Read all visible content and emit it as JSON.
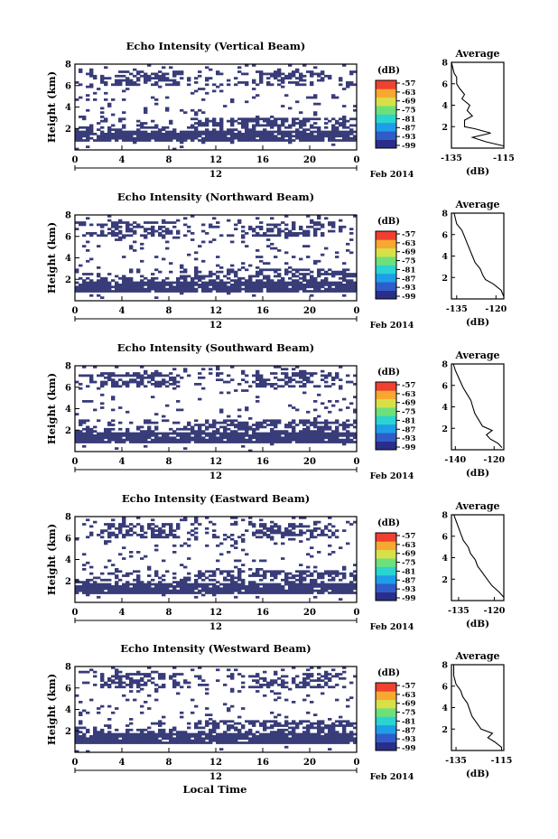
{
  "figure": {
    "xlabel": "Local Time",
    "date_label": "Feb 2014",
    "cbar_unit": "(dB)",
    "cbar_ticks": [
      "-57",
      "-63",
      "-69",
      "-75",
      "-81",
      "-87",
      "-93",
      "-99"
    ],
    "cbar_colors": [
      "#2a2e8a",
      "#2f5cc8",
      "#1e9ee8",
      "#2ad4d0",
      "#6ee07a",
      "#d8e048",
      "#f8a830",
      "#f04030"
    ],
    "echo_color": "#383c78"
  },
  "chart_data": [
    {
      "type": "heatmap",
      "title": "Echo Intensity (Vertical Beam)",
      "ylabel": "Height (km)",
      "x_ticks": [
        "0",
        "4",
        "8",
        "12",
        "16",
        "20",
        "0"
      ],
      "x_center_label": "12",
      "xlim": [
        0,
        24
      ],
      "y_ticks": [
        "2",
        "4",
        "6",
        "8"
      ],
      "ylim": [
        0,
        8
      ],
      "avg": {
        "title": "Average",
        "xlabel": "(dB)",
        "x_ticks": [
          "-135",
          "-115"
        ],
        "xlim": [
          -135,
          -115
        ],
        "y_ticks": [
          "2",
          "4",
          "6",
          "8"
        ],
        "ylim": [
          0,
          8
        ],
        "profile": [
          [
            -115,
            0.2
          ],
          [
            -122,
            0.6
          ],
          [
            -127,
            1.0
          ],
          [
            -120,
            1.4
          ],
          [
            -126,
            1.8
          ],
          [
            -130,
            2.0
          ],
          [
            -130,
            2.6
          ],
          [
            -127,
            3.0
          ],
          [
            -129,
            3.5
          ],
          [
            -128,
            4.0
          ],
          [
            -131,
            4.6
          ],
          [
            -130,
            5.0
          ],
          [
            -132,
            5.6
          ],
          [
            -133,
            6.0
          ],
          [
            -133,
            6.6
          ],
          [
            -134,
            7.0
          ],
          [
            -135,
            8.0
          ]
        ]
      }
    },
    {
      "type": "heatmap",
      "title": "Echo Intensity (Northward Beam)",
      "ylabel": "Height (km)",
      "x_ticks": [
        "0",
        "4",
        "8",
        "12",
        "16",
        "20",
        "0"
      ],
      "x_center_label": "12",
      "xlim": [
        0,
        24
      ],
      "y_ticks": [
        "2",
        "4",
        "6",
        "8"
      ],
      "ylim": [
        0,
        8
      ],
      "avg": {
        "title": "Average",
        "xlabel": "(dB)",
        "x_ticks": [
          "-135",
          "-120"
        ],
        "xlim": [
          -137,
          -117
        ],
        "y_ticks": [
          "2",
          "4",
          "6",
          "8"
        ],
        "ylim": [
          0,
          8
        ],
        "profile": [
          [
            -117,
            0.2
          ],
          [
            -118,
            0.8
          ],
          [
            -121,
            1.4
          ],
          [
            -124,
            1.8
          ],
          [
            -125,
            2.2
          ],
          [
            -126,
            2.8
          ],
          [
            -128,
            3.4
          ],
          [
            -129,
            4.0
          ],
          [
            -130,
            4.6
          ],
          [
            -131,
            5.2
          ],
          [
            -132,
            5.8
          ],
          [
            -133,
            6.4
          ],
          [
            -135,
            7.0
          ],
          [
            -136,
            8.0
          ]
        ]
      }
    },
    {
      "type": "heatmap",
      "title": "Echo Intensity (Southward Beam)",
      "ylabel": "Height (km)",
      "x_ticks": [
        "0",
        "4",
        "8",
        "12",
        "16",
        "20",
        "0"
      ],
      "x_center_label": "12",
      "xlim": [
        0,
        24
      ],
      "y_ticks": [
        "2",
        "4",
        "6",
        "8"
      ],
      "ylim": [
        0,
        8
      ],
      "avg": {
        "title": "Average",
        "xlabel": "(dB)",
        "x_ticks": [
          "-140",
          "-120"
        ],
        "xlim": [
          -142,
          -115
        ],
        "y_ticks": [
          "2",
          "4",
          "6",
          "8"
        ],
        "ylim": [
          0,
          8
        ],
        "profile": [
          [
            -116,
            0.2
          ],
          [
            -118,
            0.6
          ],
          [
            -122,
            1.0
          ],
          [
            -124,
            1.4
          ],
          [
            -121,
            1.8
          ],
          [
            -126,
            2.2
          ],
          [
            -128,
            2.8
          ],
          [
            -130,
            3.4
          ],
          [
            -131,
            4.0
          ],
          [
            -132,
            4.6
          ],
          [
            -134,
            5.2
          ],
          [
            -136,
            5.8
          ],
          [
            -138,
            6.6
          ],
          [
            -140,
            7.4
          ],
          [
            -141,
            8.0
          ]
        ]
      }
    },
    {
      "type": "heatmap",
      "title": "Echo Intensity (Eastward Beam)",
      "ylabel": "Height (km)",
      "x_ticks": [
        "0",
        "4",
        "8",
        "12",
        "16",
        "20",
        "0"
      ],
      "x_center_label": "12",
      "xlim": [
        0,
        24
      ],
      "y_ticks": [
        "2",
        "4",
        "6",
        "8"
      ],
      "ylim": [
        0,
        8
      ],
      "avg": {
        "title": "Average",
        "xlabel": "(dB)",
        "x_ticks": [
          "-135",
          "-120"
        ],
        "xlim": [
          -138,
          -116
        ],
        "y_ticks": [
          "2",
          "4",
          "6",
          "8"
        ],
        "ylim": [
          0,
          8
        ],
        "profile": [
          [
            -116,
            0.3
          ],
          [
            -118,
            0.8
          ],
          [
            -121,
            1.4
          ],
          [
            -123,
            2.0
          ],
          [
            -125,
            2.6
          ],
          [
            -127,
            3.2
          ],
          [
            -128,
            3.8
          ],
          [
            -130,
            4.4
          ],
          [
            -131,
            5.0
          ],
          [
            -133,
            5.6
          ],
          [
            -134,
            6.2
          ],
          [
            -135,
            6.8
          ],
          [
            -137,
            8.0
          ]
        ]
      }
    },
    {
      "type": "heatmap",
      "title": "Echo Intensity (Westward Beam)",
      "ylabel": "Height (km)",
      "x_ticks": [
        "0",
        "4",
        "8",
        "12",
        "16",
        "20",
        "0"
      ],
      "x_center_label": "12",
      "xlim": [
        0,
        24
      ],
      "y_ticks": [
        "2",
        "4",
        "6",
        "8"
      ],
      "ylim": [
        0,
        8
      ],
      "avg": {
        "title": "Average",
        "xlabel": "(dB)",
        "x_ticks": [
          "-135",
          "-115"
        ],
        "xlim": [
          -137,
          -114
        ],
        "y_ticks": [
          "2",
          "4",
          "6",
          "8"
        ],
        "ylim": [
          0,
          8
        ],
        "profile": [
          [
            -115,
            0.3
          ],
          [
            -118,
            0.8
          ],
          [
            -121,
            1.2
          ],
          [
            -119,
            1.6
          ],
          [
            -124,
            2.0
          ],
          [
            -126,
            2.6
          ],
          [
            -128,
            3.2
          ],
          [
            -129,
            3.8
          ],
          [
            -130,
            4.4
          ],
          [
            -132,
            5.0
          ],
          [
            -133,
            5.6
          ],
          [
            -135,
            6.2
          ],
          [
            -136,
            7.0
          ],
          [
            -136,
            8.0
          ]
        ]
      }
    }
  ]
}
